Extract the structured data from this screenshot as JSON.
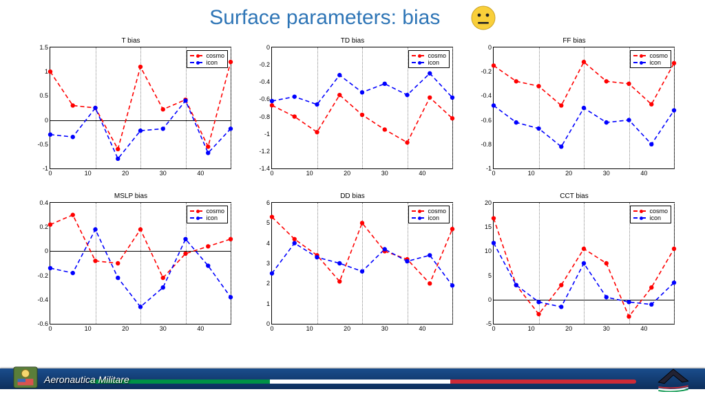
{
  "title": "Surface parameters: bias",
  "title_color": "#2e75b6",
  "title_fontsize": 30,
  "emoji_face_color": "#f9cf3a",
  "emoji_ink": "#222222",
  "legend_labels": [
    "cosmo",
    "icon"
  ],
  "series_colors": {
    "cosmo": "#ff0000",
    "icon": "#0000ff"
  },
  "series_style": {
    "dash": "6,4",
    "width": 1.6,
    "marker_size": 3.2
  },
  "x": {
    "limits": [
      0,
      48
    ],
    "ticks": [
      0,
      10,
      20,
      30,
      40
    ],
    "grid_at": [
      12,
      24,
      36,
      48
    ],
    "n_points": 9
  },
  "charts": [
    {
      "title": "T bias",
      "ylim": [
        -1,
        1.5
      ],
      "yticks": [
        -1,
        -0.5,
        0,
        0.5,
        1,
        1.5
      ],
      "zero_line": true,
      "cosmo": [
        1.0,
        0.3,
        0.25,
        -0.6,
        1.1,
        0.22,
        0.42,
        -0.55,
        1.2
      ],
      "icon": [
        -0.3,
        -0.35,
        0.25,
        -0.8,
        -0.22,
        -0.18,
        0.4,
        -0.68,
        -0.18
      ]
    },
    {
      "title": "TD bias",
      "ylim": [
        -1.4,
        0
      ],
      "yticks": [
        -1.4,
        -1.2,
        -1.0,
        -0.8,
        -0.6,
        -0.4,
        -0.2,
        0
      ],
      "zero_line": false,
      "cosmo": [
        -0.67,
        -0.8,
        -0.98,
        -0.55,
        -0.78,
        -0.95,
        -1.1,
        -0.58,
        -0.82
      ],
      "icon": [
        -0.62,
        -0.57,
        -0.66,
        -0.32,
        -0.52,
        -0.42,
        -0.55,
        -0.3,
        -0.58
      ]
    },
    {
      "title": "FF bias",
      "ylim": [
        -1,
        0
      ],
      "yticks": [
        -1,
        -0.8,
        -0.6,
        -0.4,
        -0.2,
        0
      ],
      "zero_line": false,
      "cosmo": [
        -0.15,
        -0.28,
        -0.32,
        -0.48,
        -0.12,
        -0.28,
        -0.3,
        -0.47,
        -0.13
      ],
      "icon": [
        -0.48,
        -0.62,
        -0.67,
        -0.82,
        -0.5,
        -0.62,
        -0.6,
        -0.8,
        -0.52
      ]
    },
    {
      "title": "MSLP bias",
      "ylim": [
        -0.6,
        0.4
      ],
      "yticks": [
        -0.6,
        -0.4,
        -0.2,
        0,
        0.2,
        0.4
      ],
      "zero_line": true,
      "cosmo": [
        0.22,
        0.3,
        -0.08,
        -0.1,
        0.18,
        -0.22,
        -0.02,
        0.04,
        0.1
      ],
      "icon": [
        -0.14,
        -0.18,
        0.18,
        -0.22,
        -0.46,
        -0.3,
        0.1,
        -0.12,
        -0.38
      ]
    },
    {
      "title": "DD bias",
      "ylim": [
        0,
        6
      ],
      "yticks": [
        0,
        1,
        2,
        3,
        4,
        5,
        6
      ],
      "zero_line": false,
      "cosmo": [
        5.3,
        4.2,
        3.4,
        2.1,
        5.0,
        3.6,
        3.2,
        2.0,
        4.7
      ],
      "icon": [
        2.5,
        4.0,
        3.3,
        3.0,
        2.6,
        3.7,
        3.1,
        3.4,
        1.9
      ]
    },
    {
      "title": "CCT bias",
      "ylim": [
        -5,
        20
      ],
      "yticks": [
        -5,
        0,
        5,
        10,
        15,
        20
      ],
      "zero_line": true,
      "cosmo": [
        16.8,
        3.0,
        -3.0,
        3.0,
        10.5,
        7.5,
        -3.5,
        2.5,
        10.5
      ],
      "icon": [
        11.7,
        3.0,
        -0.5,
        -1.5,
        7.5,
        0.5,
        -0.5,
        -1.0,
        3.5
      ]
    }
  ],
  "footer": {
    "text": "Aeronautica Militare",
    "band_gradient": [
      "#1a4d8c",
      "#0d2f5c"
    ],
    "flag": [
      "#009246",
      "#ffffff",
      "#ce2b37"
    ]
  }
}
